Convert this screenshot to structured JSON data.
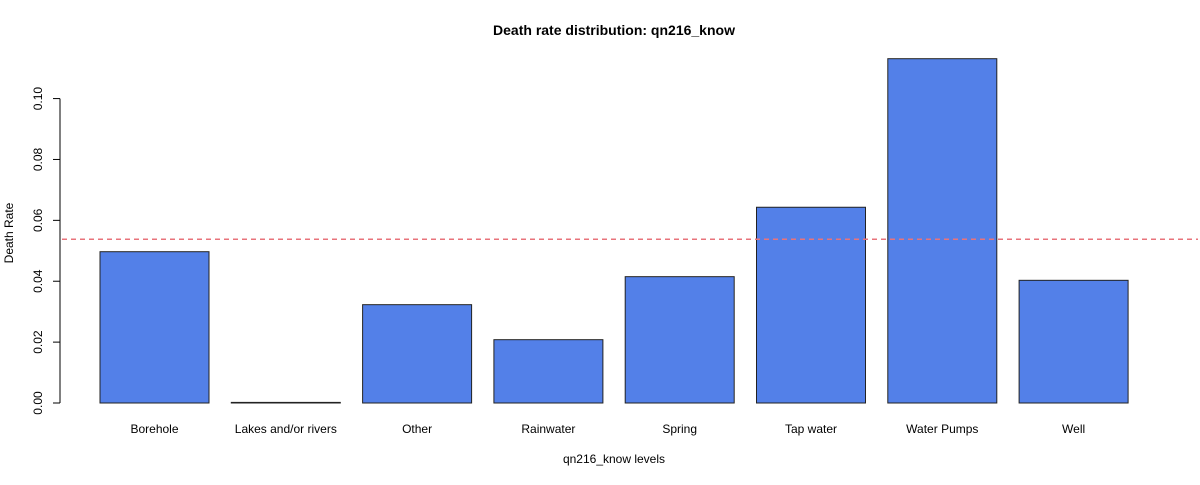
{
  "chart_data": {
    "type": "bar",
    "title": "Death rate distribution: qn216_know",
    "xlabel": "qn216_know levels",
    "ylabel": "Death Rate",
    "categories": [
      "Borehole",
      "Lakes and/or rivers",
      "Other",
      "Rainwater",
      "Spring",
      "Tap water",
      "Water Pumps",
      "Well"
    ],
    "values": [
      0.0497,
      0.0002,
      0.0323,
      0.0208,
      0.0415,
      0.0643,
      0.1131,
      0.0403
    ],
    "ylim": [
      0,
      0.113
    ],
    "yticks": [
      0.0,
      0.02,
      0.04,
      0.06,
      0.08,
      0.1
    ],
    "ytick_labels": [
      "0.00",
      "0.02",
      "0.04",
      "0.06",
      "0.08",
      "0.10"
    ],
    "reference_line": 0.0538,
    "grid": false,
    "colors": {
      "bar_fill": "#5380E8",
      "bar_stroke": "#222222",
      "reference_line": "#E8737B",
      "axis": "#000000"
    }
  }
}
